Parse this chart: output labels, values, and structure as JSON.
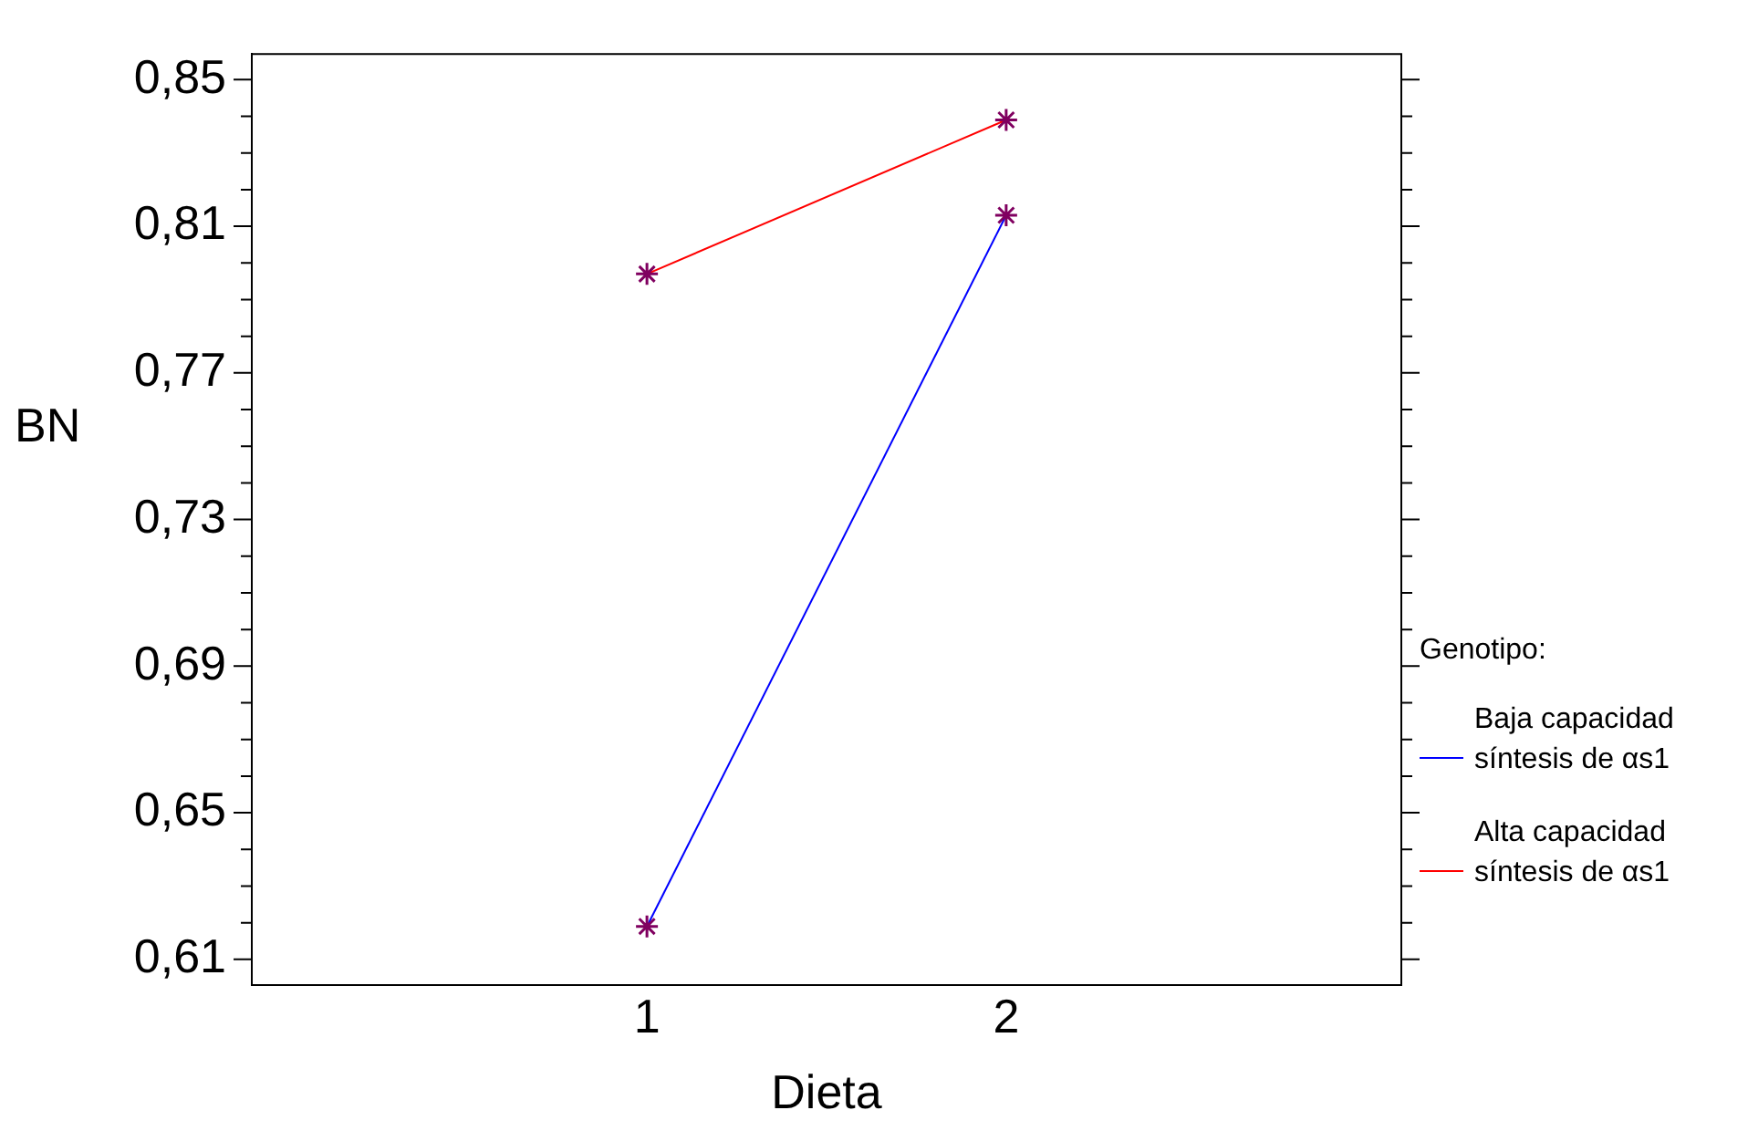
{
  "chart_data": {
    "type": "line",
    "xlabel": "Dieta",
    "ylabel": "BN",
    "legend_title": "Genotipo:",
    "legend": "right",
    "marker": "cross",
    "grid": false,
    "x": [
      1,
      2
    ],
    "xlim": [
      -0.1,
      3.1
    ],
    "xticks": [
      1,
      2
    ],
    "ylim": [
      0.603,
      0.857
    ],
    "yticks": [
      {
        "value": 0.61,
        "label": "0,61"
      },
      {
        "value": 0.62,
        "label": null
      },
      {
        "value": 0.63,
        "label": null
      },
      {
        "value": 0.64,
        "label": null
      },
      {
        "value": 0.65,
        "label": "0,65"
      },
      {
        "value": 0.66,
        "label": null
      },
      {
        "value": 0.67,
        "label": null
      },
      {
        "value": 0.68,
        "label": null
      },
      {
        "value": 0.69,
        "label": "0,69"
      },
      {
        "value": 0.7,
        "label": null
      },
      {
        "value": 0.71,
        "label": null
      },
      {
        "value": 0.72,
        "label": null
      },
      {
        "value": 0.73,
        "label": "0,73"
      },
      {
        "value": 0.74,
        "label": null
      },
      {
        "value": 0.75,
        "label": null
      },
      {
        "value": 0.76,
        "label": null
      },
      {
        "value": 0.77,
        "label": "0,77"
      },
      {
        "value": 0.78,
        "label": null
      },
      {
        "value": 0.79,
        "label": null
      },
      {
        "value": 0.8,
        "label": null
      },
      {
        "value": 0.81,
        "label": "0,81"
      },
      {
        "value": 0.82,
        "label": null
      },
      {
        "value": 0.83,
        "label": null
      },
      {
        "value": 0.84,
        "label": null
      },
      {
        "value": 0.85,
        "label": "0,85"
      }
    ],
    "series": [
      {
        "name": "Baja capacidad síntesis de αs1",
        "color": "#0000ff",
        "values": [
          0.619,
          0.813
        ]
      },
      {
        "name": "Alta capacidad síntesis de αs1",
        "color": "#ff0000",
        "values": [
          0.797,
          0.839
        ]
      }
    ]
  }
}
